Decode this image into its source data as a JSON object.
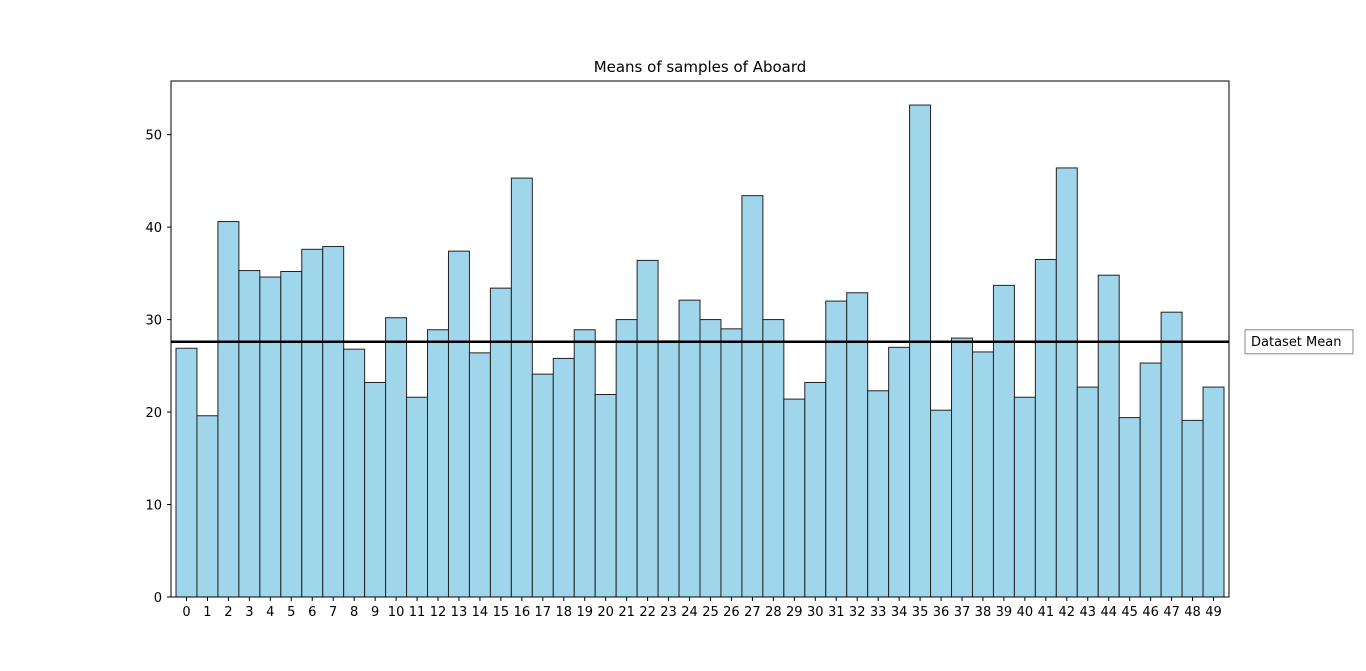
{
  "chart_data": {
    "type": "bar",
    "title": "Means of samples of Aboard",
    "xlabel": "",
    "ylabel": "",
    "categories": [
      "0",
      "1",
      "2",
      "3",
      "4",
      "5",
      "6",
      "7",
      "8",
      "9",
      "10",
      "11",
      "12",
      "13",
      "14",
      "15",
      "16",
      "17",
      "18",
      "19",
      "20",
      "21",
      "22",
      "23",
      "24",
      "25",
      "26",
      "27",
      "28",
      "29",
      "30",
      "31",
      "32",
      "33",
      "34",
      "35",
      "36",
      "37",
      "38",
      "39",
      "40",
      "41",
      "42",
      "43",
      "44",
      "45",
      "46",
      "47",
      "48",
      "49"
    ],
    "values": [
      26.9,
      19.6,
      40.6,
      35.3,
      34.6,
      35.2,
      37.6,
      37.9,
      26.8,
      23.2,
      30.2,
      21.6,
      28.9,
      37.4,
      26.4,
      33.4,
      45.3,
      24.1,
      25.8,
      28.9,
      21.9,
      30.0,
      36.4,
      27.7,
      32.1,
      30.0,
      29.0,
      43.4,
      30.0,
      21.4,
      23.2,
      32.0,
      32.9,
      22.3,
      27.0,
      53.2,
      20.2,
      28.0,
      26.5,
      33.7,
      21.6,
      36.5,
      46.4,
      22.7,
      34.8,
      19.4,
      25.3,
      30.8,
      19.1,
      22.7
    ],
    "ylim": [
      0,
      55.8
    ],
    "yticks": [
      0,
      10,
      20,
      30,
      40,
      50
    ],
    "bar_color": "#a0d6ec",
    "bar_edge_color": "#222222",
    "reference_line": {
      "label": "Dataset Mean",
      "value": 27.6,
      "color": "#000000"
    },
    "legend": {
      "placement": "right",
      "entries": [
        "Dataset Mean"
      ]
    },
    "grid": false
  }
}
